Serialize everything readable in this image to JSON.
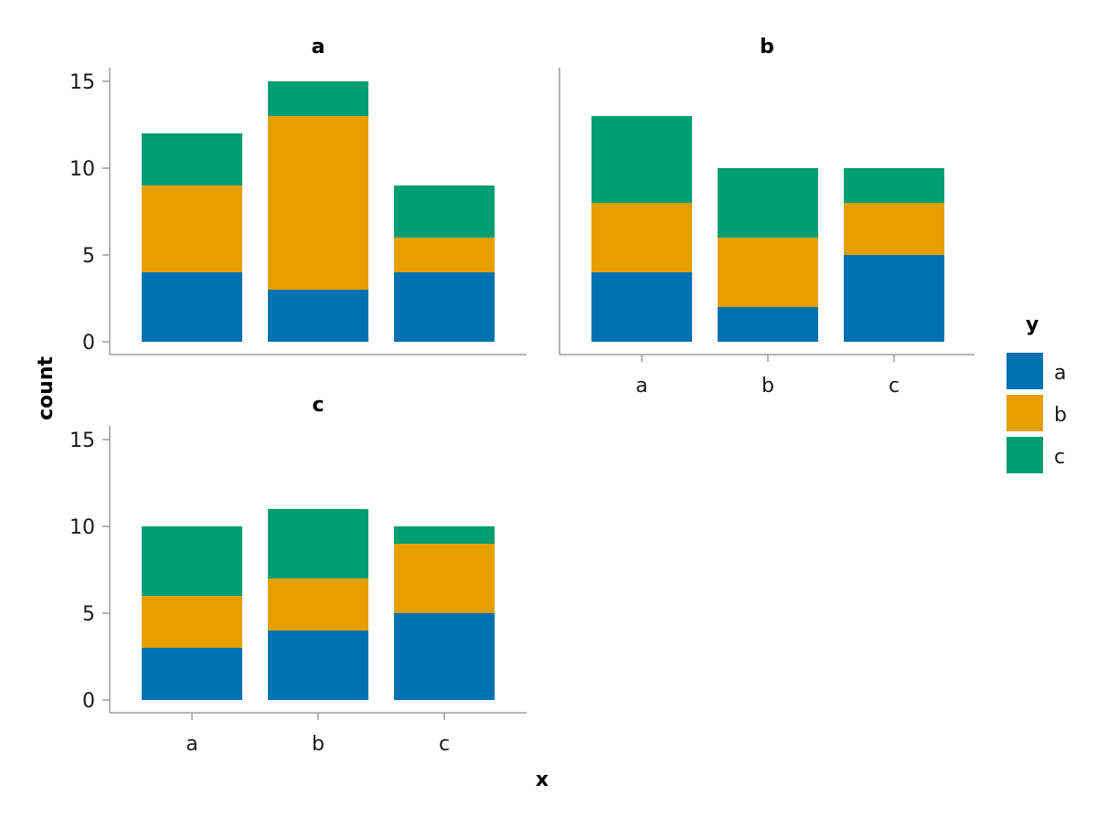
{
  "chart_data": {
    "type": "bar",
    "stacked": true,
    "facet_by": "x",
    "categories": [
      "a",
      "b",
      "c"
    ],
    "xlabel": "x",
    "ylabel": "count",
    "ylim": [
      0,
      16
    ],
    "yticks": [
      0,
      5,
      10,
      15
    ],
    "grid": false,
    "legend": {
      "title": "y",
      "placement": "right",
      "entries": [
        "a",
        "b",
        "c"
      ]
    },
    "colors": {
      "a": "#0072b2",
      "b": "#e69f00",
      "c": "#009e73"
    },
    "facets": [
      {
        "title": "a",
        "series": [
          {
            "name": "a",
            "values": [
              4,
              3,
              4
            ]
          },
          {
            "name": "b",
            "values": [
              5,
              10,
              2
            ]
          },
          {
            "name": "c",
            "values": [
              3,
              2,
              3
            ]
          }
        ]
      },
      {
        "title": "b",
        "series": [
          {
            "name": "a",
            "values": [
              4,
              2,
              5
            ]
          },
          {
            "name": "b",
            "values": [
              4,
              4,
              3
            ]
          },
          {
            "name": "c",
            "values": [
              5,
              4,
              2
            ]
          }
        ]
      },
      {
        "title": "c",
        "series": [
          {
            "name": "a",
            "values": [
              3,
              4,
              5
            ]
          },
          {
            "name": "b",
            "values": [
              3,
              3,
              4
            ]
          },
          {
            "name": "c",
            "values": [
              4,
              4,
              1
            ]
          }
        ]
      }
    ]
  }
}
